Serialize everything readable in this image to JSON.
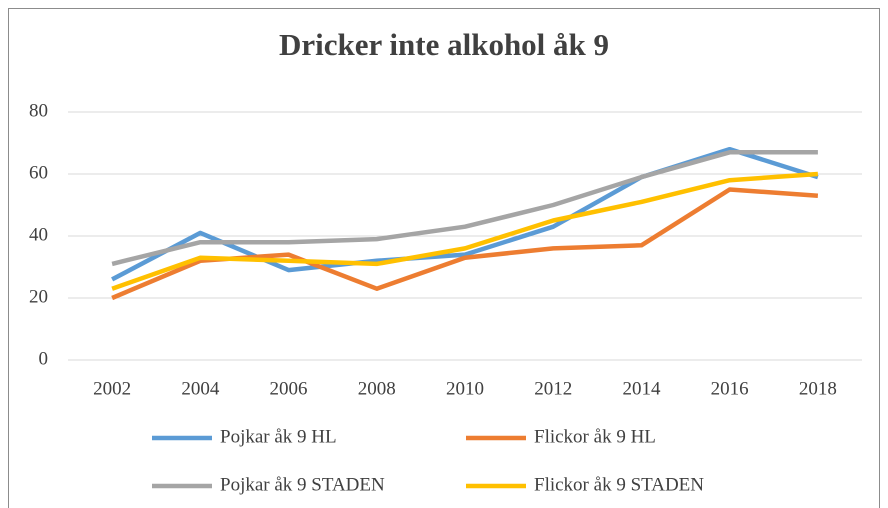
{
  "chart_data": {
    "type": "line",
    "title": "Dricker inte alkohol åk 9",
    "categories": [
      "2002",
      "2004",
      "2006",
      "2008",
      "2010",
      "2012",
      "2014",
      "2016",
      "2018"
    ],
    "series": [
      {
        "name": "Pojkar åk 9 HL",
        "color": "#5b9bd5",
        "values": [
          26,
          41,
          29,
          32,
          34,
          43,
          59,
          68,
          59
        ]
      },
      {
        "name": "Flickor åk 9 HL",
        "color": "#ed7d31",
        "values": [
          20,
          32,
          34,
          23,
          33,
          36,
          37,
          55,
          53
        ]
      },
      {
        "name": "Pojkar åk 9 STADEN",
        "color": "#a5a5a5",
        "values": [
          31,
          38,
          38,
          39,
          43,
          50,
          59,
          67,
          67
        ]
      },
      {
        "name": "Flickor åk 9 STADEN",
        "color": "#ffc000",
        "values": [
          23,
          33,
          32,
          31,
          36,
          45,
          51,
          58,
          60
        ]
      }
    ],
    "ylim": [
      0,
      80
    ],
    "yticks": [
      0,
      20,
      40,
      60,
      80
    ],
    "grid": true
  }
}
